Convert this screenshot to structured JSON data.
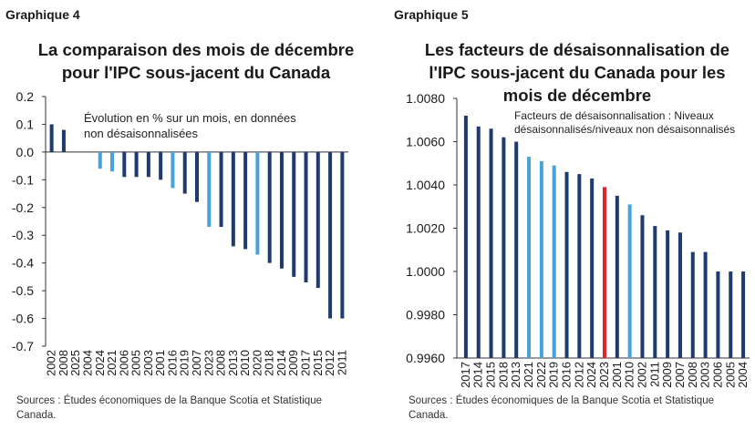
{
  "panels": [
    {
      "graphique_label": "Graphique 4",
      "title": "La comparaison des mois de décembre pour l'IPC sous-jacent du Canada",
      "note": "Évolution en % sur un mois, en données non désaisonnalisées",
      "source": "Sources : Études économiques de la Banque Scotia et Statistique Canada."
    },
    {
      "graphique_label": "Graphique 5",
      "title": "Les facteurs de désaisonnalisation de l'IPC sous-jacent du Canada pour les mois de décembre",
      "note": "Facteurs de désaisonnalisation : Niveaux désaisonnalisés/niveaux non désaisonnalisés",
      "source": "Sources : Études économiques de la Banque Scotia et Statistique Canada."
    }
  ],
  "chart_data": [
    {
      "type": "bar",
      "categories": [
        "2002",
        "2008",
        "2025",
        "2004",
        "2024",
        "2021",
        "2006",
        "2005",
        "2003",
        "2001",
        "2016",
        "2019",
        "2007",
        "2023",
        "2008",
        "2013",
        "2010",
        "2020",
        "2018",
        "2014",
        "2009",
        "2017",
        "2015",
        "2012",
        "2011"
      ],
      "values": [
        0.1,
        0.08,
        0.0,
        0.0,
        -0.06,
        -0.07,
        -0.09,
        -0.09,
        -0.09,
        -0.1,
        -0.13,
        -0.15,
        -0.18,
        -0.27,
        -0.27,
        -0.34,
        -0.35,
        -0.37,
        -0.4,
        -0.42,
        -0.45,
        -0.47,
        -0.49,
        -0.6,
        -0.6
      ],
      "highlight": [
        "dark",
        "dark",
        "dark",
        "dark",
        "light",
        "light",
        "dark",
        "dark",
        "dark",
        "dark",
        "light",
        "dark",
        "dark",
        "light",
        "dark",
        "dark",
        "dark",
        "light",
        "dark",
        "dark",
        "dark",
        "dark",
        "dark",
        "dark",
        "dark"
      ],
      "ylim": [
        -0.7,
        0.2
      ],
      "yticks": [
        "0.2",
        "0.1",
        "0.0",
        "-0.1",
        "-0.2",
        "-0.3",
        "-0.4",
        "-0.5",
        "-0.6",
        "-0.7"
      ],
      "xlabel": "",
      "ylabel": "",
      "colors": {
        "dark": "#1f3a6e",
        "light": "#4aa3d8"
      }
    },
    {
      "type": "bar",
      "categories": [
        "2017",
        "2014",
        "2015",
        "2018",
        "2013",
        "2021",
        "2022",
        "2019",
        "2016",
        "2012",
        "2024",
        "2023",
        "2001",
        "2010",
        "2002",
        "2011",
        "2009",
        "2007",
        "2008",
        "2003",
        "2006",
        "2005",
        "2004"
      ],
      "values": [
        1.0072,
        1.0067,
        1.0066,
        1.0062,
        1.006,
        1.0053,
        1.0051,
        1.0049,
        1.0046,
        1.0045,
        1.0043,
        1.0039,
        1.0035,
        1.0031,
        1.0026,
        1.0021,
        1.0019,
        1.0018,
        1.0009,
        1.0009,
        1.0,
        1.0,
        1.0
      ],
      "highlight": [
        "dark",
        "dark",
        "dark",
        "dark",
        "dark",
        "light",
        "light",
        "light",
        "dark",
        "dark",
        "dark",
        "red",
        "dark",
        "light",
        "dark",
        "dark",
        "dark",
        "dark",
        "dark",
        "dark",
        "dark",
        "dark",
        "dark"
      ],
      "ylim": [
        0.996,
        1.008
      ],
      "yticks": [
        "1.0080",
        "1.0060",
        "1.0040",
        "1.0020",
        "1.0000",
        "0.9980",
        "0.9960"
      ],
      "xlabel": "",
      "ylabel": "",
      "colors": {
        "dark": "#1f3a6e",
        "light": "#4aa3d8",
        "red": "#e8202a"
      }
    }
  ]
}
